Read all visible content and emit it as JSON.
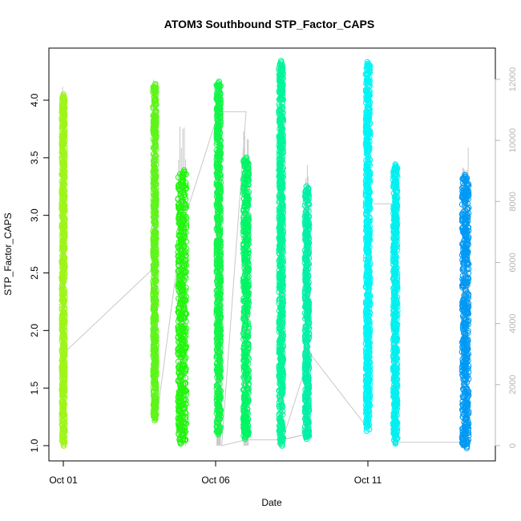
{
  "chart_data": {
    "type": "scatter",
    "title": "ATOM3 Southbound STP_Factor_CAPS",
    "xlabel": "Date",
    "ylabel": "STP_Factor_CAPS",
    "x_tick_labels": [
      "Oct 01",
      "Oct 06",
      "Oct 11"
    ],
    "x_ticks_day": [
      1,
      6,
      11
    ],
    "xlim_day": [
      0.05,
      15.0
    ],
    "ylim": [
      0.95,
      4.35
    ],
    "y_ticks": [
      "1.0",
      "1.5",
      "2.0",
      "2.5",
      "3.0",
      "3.5",
      "4.0"
    ],
    "y2lim": [
      -150,
      12500
    ],
    "y2_ticks": [
      "0",
      "2000",
      "4000",
      "6000",
      "8000",
      "10000",
      "12000"
    ],
    "y2_color": "#b5b5b5",
    "grid": false,
    "marker": "open-circle",
    "series": [
      {
        "x_day": 1.0,
        "ymin": 1.02,
        "ymax": 4.03,
        "color": "#9ef51a",
        "spread": 0.1,
        "y2_range": [
          2000,
          12300
        ]
      },
      {
        "x_day": 4.0,
        "ymin": 1.24,
        "ymax": 4.12,
        "color": "#5ef51a",
        "spread": 0.1,
        "y2_range": [
          2500,
          12300
        ]
      },
      {
        "x_day": 4.9,
        "ymin": 1.04,
        "ymax": 3.37,
        "color": "#22f50d",
        "spread": 0.28,
        "y2_range": [
          0,
          10800
        ]
      },
      {
        "x_day": 6.1,
        "ymin": 1.12,
        "ymax": 4.14,
        "color": "#11f548",
        "spread": 0.14,
        "y2_range": [
          0,
          12200
        ]
      },
      {
        "x_day": 7.0,
        "ymin": 1.08,
        "ymax": 3.48,
        "color": "#00f565",
        "spread": 0.18,
        "y2_range": [
          0,
          10800
        ]
      },
      {
        "x_day": 8.15,
        "ymin": 1.02,
        "ymax": 4.32,
        "color": "#00f59a",
        "spread": 0.14,
        "y2_range": [
          0,
          11700
        ]
      },
      {
        "x_day": 9.0,
        "ymin": 1.08,
        "ymax": 3.23,
        "color": "#00f0a8",
        "spread": 0.14,
        "y2_range": [
          300,
          9600
        ]
      },
      {
        "x_day": 11.0,
        "ymin": 1.15,
        "ymax": 4.31,
        "color": "#00f5f5",
        "spread": 0.14,
        "y2_range": [
          600,
          12200
        ]
      },
      {
        "x_day": 11.9,
        "ymin": 1.04,
        "ymax": 3.42,
        "color": "#00f0f0",
        "spread": 0.14,
        "y2_range": [
          0,
          9500
        ]
      },
      {
        "x_day": 14.2,
        "ymin": 1.0,
        "ymax": 3.33,
        "color": "#0099f5",
        "spread": 0.22,
        "y2_range": [
          0,
          9800
        ]
      }
    ],
    "secondary_line": {
      "color": "#c8c8c8",
      "points": [
        [
          1.0,
          1.8
        ],
        [
          4.0,
          2.55
        ],
        [
          4.1,
          1.3
        ],
        [
          4.9,
          2.9
        ],
        [
          6.1,
          3.9
        ],
        [
          7.0,
          3.9
        ],
        [
          6.2,
          1.0
        ],
        [
          7.0,
          1.05
        ],
        [
          8.15,
          1.05
        ],
        [
          9.0,
          1.1
        ],
        [
          8.2,
          1.05
        ],
        [
          9.1,
          1.8
        ],
        [
          11.0,
          1.15
        ],
        [
          11.05,
          3.1
        ],
        [
          11.9,
          3.1
        ],
        [
          11.9,
          1.03
        ],
        [
          14.2,
          1.03
        ]
      ]
    }
  }
}
